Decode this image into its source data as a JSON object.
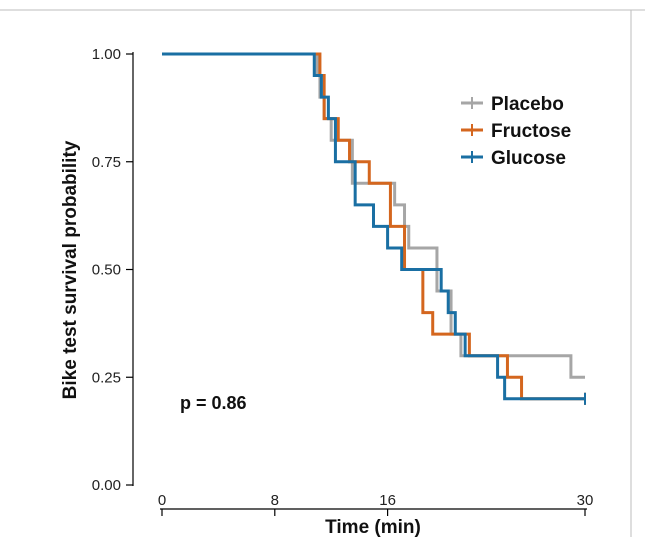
{
  "chart_data": {
    "type": "line",
    "subtype": "kaplan-meier-step",
    "title": "",
    "xlabel": "Time (min)",
    "ylabel": "Bike test survival probability",
    "xlim": [
      0,
      30
    ],
    "ylim": [
      0,
      1
    ],
    "xticks": [
      0,
      8,
      16,
      30
    ],
    "xtick_labels": [
      "0",
      "8",
      "16",
      "30"
    ],
    "yticks": [
      0,
      0.25,
      0.5,
      0.75,
      1.0
    ],
    "ytick_labels": [
      "0.00",
      "0.25",
      "0.50",
      "0.75",
      "1.00"
    ],
    "grid": false,
    "legend_position": "top-right",
    "annotation": "p = 0.86",
    "series": [
      {
        "name": "Placebo",
        "color": "#a6a6a6",
        "x": [
          0,
          11,
          11.2,
          11.5,
          12,
          13.5,
          16.5,
          17.2,
          17.5,
          19.5,
          20.5,
          21.2,
          29
        ],
        "y": [
          1.0,
          0.95,
          0.9,
          0.85,
          0.8,
          0.7,
          0.65,
          0.6,
          0.55,
          0.45,
          0.35,
          0.3,
          0.25
        ],
        "censor_x": 30,
        "end_y": 0.2
      },
      {
        "name": "Fructose",
        "color": "#d4661e",
        "x": [
          0,
          11.2,
          11.5,
          12.5,
          13.3,
          14.7,
          16.2,
          17.2,
          18.5,
          19.2,
          21.8,
          24.5,
          25.5
        ],
        "y": [
          1.0,
          0.95,
          0.85,
          0.8,
          0.75,
          0.7,
          0.6,
          0.5,
          0.4,
          0.35,
          0.3,
          0.25,
          0.2
        ],
        "censor_x": 30,
        "end_y": 0.2
      },
      {
        "name": "Glucose",
        "color": "#1a6fa3",
        "x": [
          0,
          10.8,
          11.3,
          11.8,
          12.3,
          13.7,
          15.0,
          16.0,
          17.0,
          19.8,
          20.3,
          20.8,
          21.5,
          23.8,
          24.3
        ],
        "y": [
          1.0,
          0.95,
          0.9,
          0.85,
          0.75,
          0.65,
          0.6,
          0.55,
          0.5,
          0.45,
          0.4,
          0.35,
          0.3,
          0.25,
          0.2
        ],
        "censor_x": 30,
        "end_y": 0.2
      }
    ]
  }
}
